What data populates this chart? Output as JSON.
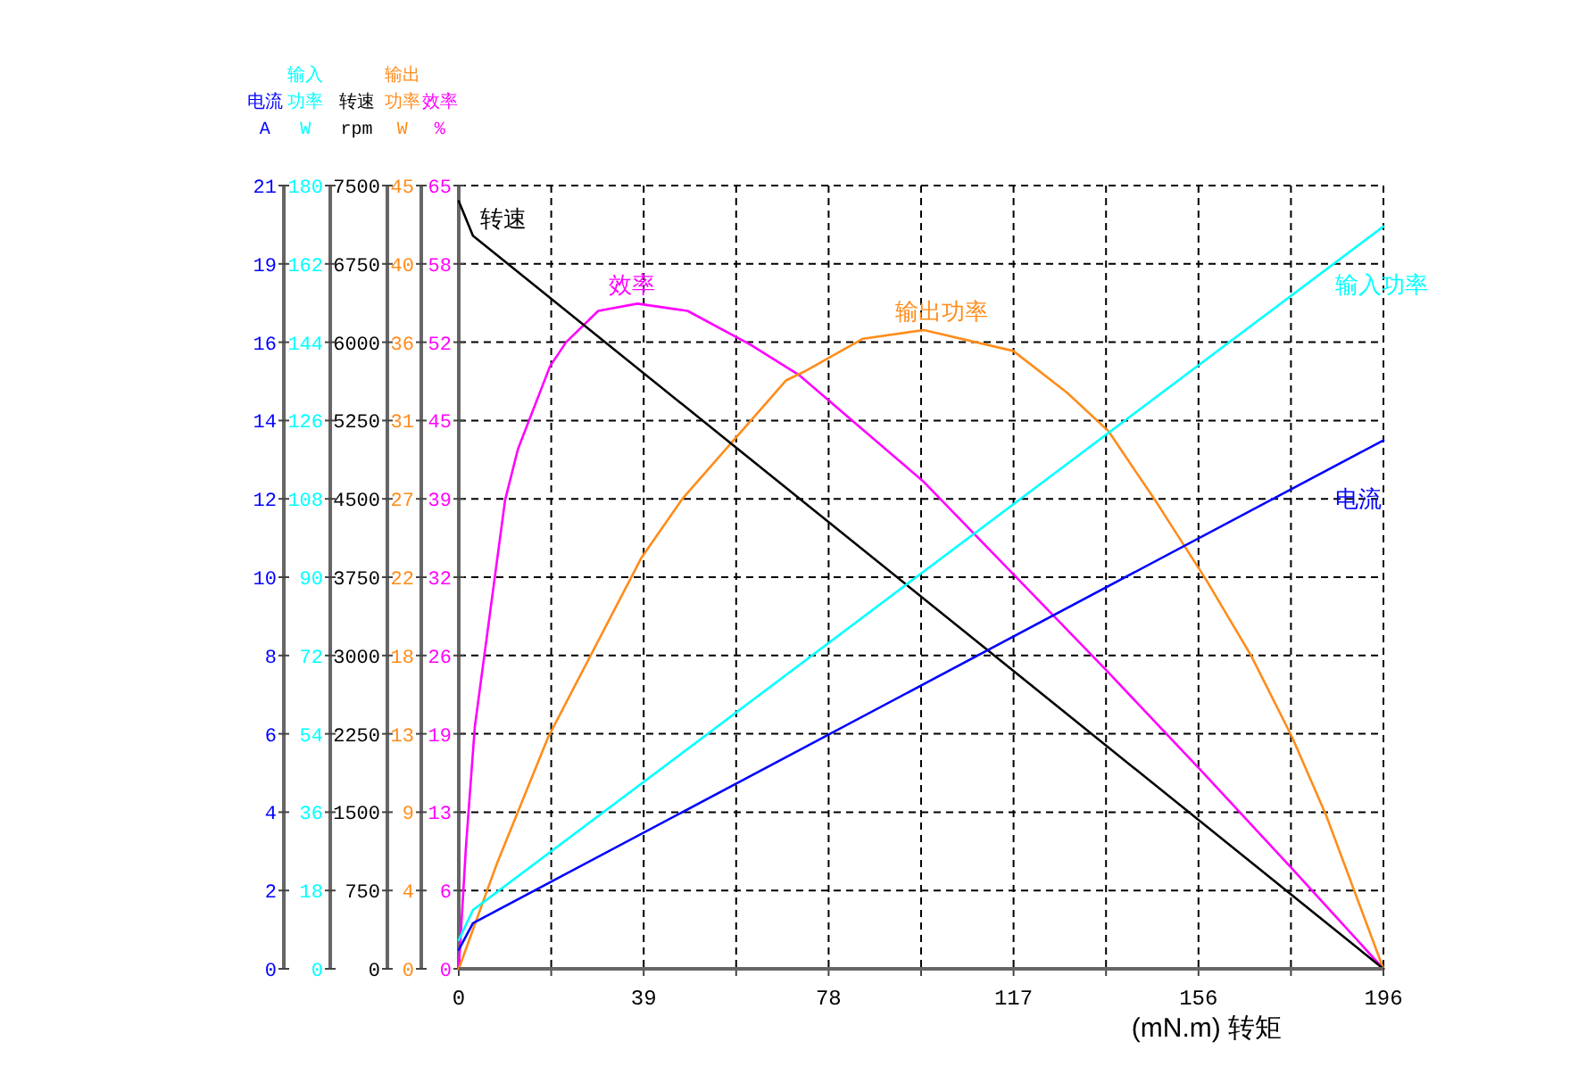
{
  "chart_data": [
    {
      "type": "line",
      "xlabel": "(mN.m) 转矩",
      "ylabel": "效率%",
      "xlim": [
        0,
        195.6
      ],
      "xticks": [
        0,
        {
          "value": 19.56,
          "label": null
        },
        {
          "value": 39.12,
          "label": "39"
        },
        {
          "value": 58.68,
          "label": null
        },
        {
          "value": 78.24,
          "label": "78"
        },
        {
          "value": 97.8,
          "label": null
        },
        {
          "value": 117.36,
          "label": "117"
        },
        {
          "value": 136.92,
          "label": null
        },
        {
          "value": 156.48,
          "label": "156"
        },
        {
          "value": 176.04,
          "label": null
        },
        {
          "value": 195.6,
          "label": "196"
        }
      ],
      "ylim": [
        0,
        65
      ],
      "yticks": [
        0,
        {
          "value": 6.5,
          "label": "6"
        },
        13,
        {
          "value": 19.5,
          "label": "19"
        },
        26,
        {
          "value": 32.5,
          "label": "32"
        },
        39,
        {
          "value": 45.5,
          "label": "45"
        },
        52,
        {
          "value": 58.5,
          "label": "58"
        },
        65
      ],
      "grid": true,
      "series": [
        {
          "name": "效率",
          "color": "#ff00ff",
          "x": [
            0,
            1.5,
            3.4,
            9.8,
            12.5,
            19.3,
            22.7,
            29.5,
            37.8,
            48.4,
            61.7,
            71.9,
            98.4,
            118.4,
            137.4,
            157.4,
            176.3,
            195.6
          ],
          "values": [
            0,
            10,
            20.1,
            38.9,
            43.1,
            50.0,
            52.0,
            54.6,
            55.2,
            54.6,
            51.8,
            49.3,
            40.4,
            32.3,
            24.6,
            16.3,
            8.3,
            0
          ]
        }
      ]
    },
    {
      "type": "line",
      "tick_labels": "y",
      "ylabel": "输出功率W",
      "xlim": [
        0,
        195.6
      ],
      "ylim": [
        0,
        45
      ],
      "yticks": [
        0,
        {
          "value": 4.5,
          "label": "4"
        },
        9,
        {
          "value": 13.5,
          "label": "13"
        },
        18,
        {
          "value": 22.5,
          "label": "22"
        },
        27,
        {
          "value": 31.5,
          "label": "31"
        },
        36,
        {
          "value": 40.5,
          "label": "40"
        },
        45
      ],
      "series": [
        {
          "name": "输出功率",
          "color": "#ff8c1a",
          "x": [
            0,
            2,
            8,
            18.9,
            38.6,
            47.3,
            69.2,
            73,
            85.5,
            98.4,
            117.3,
            128.7,
            137.4,
            147.6,
            158.2,
            167.6,
            176.3,
            183.5,
            195.6
          ],
          "values": [
            0,
            1.5,
            6,
            13.3,
            23.6,
            27.0,
            33.8,
            34.3,
            36.2,
            36.7,
            35.5,
            33.1,
            30.9,
            26.8,
            22.3,
            18.0,
            13.3,
            8.8,
            0
          ]
        }
      ]
    },
    {
      "type": "line",
      "tick_labels": "y",
      "ylabel": "转速rpm",
      "xlim": [
        0,
        195.6
      ],
      "ylim": [
        0,
        7500
      ],
      "yticks": [
        0,
        750,
        1500,
        2250,
        3000,
        3750,
        4500,
        5250,
        6000,
        6750,
        7500
      ],
      "series": [
        {
          "name": "转速",
          "color": "#000000",
          "x": [
            0,
            3,
            195.6
          ],
          "values": [
            7350,
            7020,
            0
          ]
        }
      ]
    },
    {
      "type": "line",
      "tick_labels": "y",
      "ylabel": "输入功率W",
      "xlim": [
        0,
        195.6
      ],
      "ylim": [
        0,
        180
      ],
      "yticks": [
        0,
        18,
        36,
        54,
        72,
        90,
        108,
        126,
        144,
        162,
        180
      ],
      "series": [
        {
          "name": "输入功率",
          "color": "#00ffff",
          "x": [
            0,
            3,
            195.6
          ],
          "values": [
            6.6,
            13.5,
            170.6
          ]
        }
      ]
    },
    {
      "type": "line",
      "tick_labels": "y",
      "ylabel": "电流A",
      "xlim": [
        0,
        195.6
      ],
      "ylim": [
        0,
        20.6
      ],
      "yticks": [
        0,
        {
          "value": 2.06,
          "label": "2"
        },
        {
          "value": 4.12,
          "label": "4"
        },
        {
          "value": 6.18,
          "label": "6"
        },
        {
          "value": 8.24,
          "label": "8"
        },
        {
          "value": 10.3,
          "label": "10"
        },
        {
          "value": 12.36,
          "label": "12"
        },
        {
          "value": 14.42,
          "label": "14"
        },
        {
          "value": 16.48,
          "label": "16"
        },
        {
          "value": 18.54,
          "label": "19"
        },
        {
          "value": 20.6,
          "label": "21"
        }
      ],
      "series": [
        {
          "name": "电流",
          "color": "#0000ff",
          "x": [
            0,
            3,
            195.6
          ],
          "values": [
            0.5,
            1.2,
            13.9
          ]
        }
      ]
    }
  ]
}
